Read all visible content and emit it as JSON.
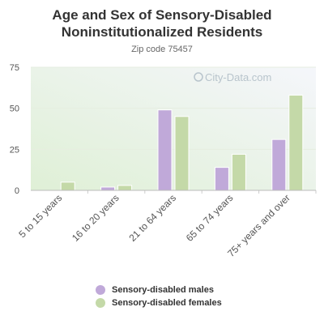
{
  "title": "Age and Sex of Sensory-Disabled Noninstitutionalized Residents",
  "subtitle": "Zip code 75457",
  "watermark": "City-Data.com",
  "chart_data": {
    "type": "bar",
    "categories": [
      "5 to 15 years",
      "16 to 20 years",
      "21 to 64 years",
      "65 to 74 years",
      "75+ years and over"
    ],
    "series": [
      {
        "name": "Sensory-disabled males",
        "color": "#c0a9d9",
        "values": [
          0,
          2,
          49,
          14,
          31
        ]
      },
      {
        "name": "Sensory-disabled females",
        "color": "#c4d9a8",
        "values": [
          5,
          3,
          45,
          22,
          58
        ]
      }
    ],
    "ylim": [
      0,
      75
    ],
    "yticks": [
      0,
      25,
      50,
      75
    ],
    "grid": true,
    "legend_position": "bottom"
  }
}
